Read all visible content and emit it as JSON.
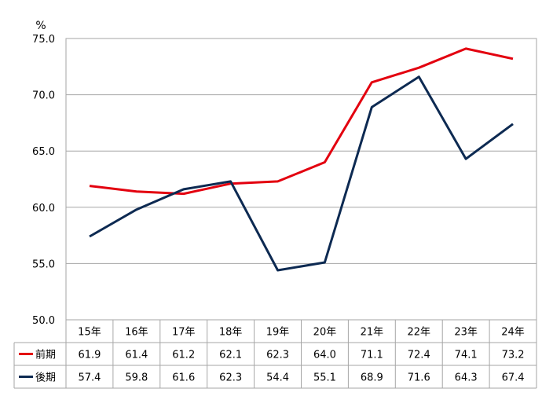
{
  "chart_data": {
    "type": "line",
    "unit_label": "%",
    "ylim": [
      50.0,
      75.0
    ],
    "yticks": [
      "50.0",
      "55.0",
      "60.0",
      "65.0",
      "70.0",
      "75.0"
    ],
    "categories": [
      "15年",
      "16年",
      "17年",
      "18年",
      "19年",
      "20年",
      "21年",
      "22年",
      "23年",
      "24年"
    ],
    "grid": true,
    "legend": "data-table-left",
    "series": [
      {
        "name": "前期",
        "color": "#e3000f",
        "values": [
          61.9,
          61.4,
          61.2,
          62.1,
          62.3,
          64.0,
          71.1,
          72.4,
          74.1,
          73.2
        ],
        "labels": [
          "61.9",
          "61.4",
          "61.2",
          "62.1",
          "62.3",
          "64.0",
          "71.1",
          "72.4",
          "74.1",
          "73.2"
        ]
      },
      {
        "name": "後期",
        "color": "#0d2a52",
        "values": [
          57.4,
          59.8,
          61.6,
          62.3,
          54.4,
          55.1,
          68.9,
          71.6,
          64.3,
          67.4
        ],
        "labels": [
          "57.4",
          "59.8",
          "61.6",
          "62.3",
          "54.4",
          "55.1",
          "68.9",
          "71.6",
          "64.3",
          "67.4"
        ]
      }
    ]
  }
}
